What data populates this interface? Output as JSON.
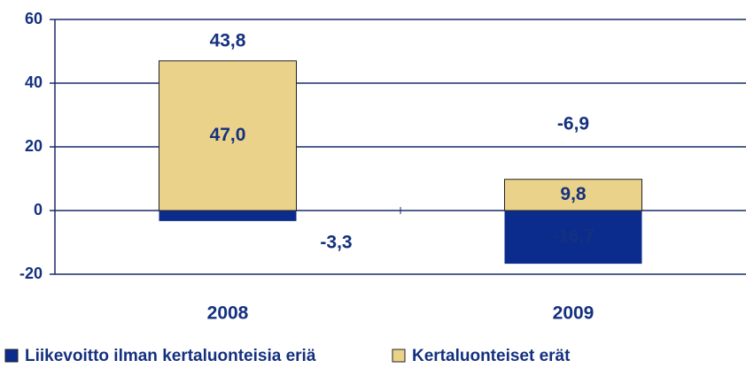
{
  "chart_data": {
    "type": "bar",
    "stacked": true,
    "categories": [
      "2008",
      "2009"
    ],
    "series": [
      {
        "name": "Liikevoitto ilman kertaluonteisia eriä",
        "color": "#0b2c8c",
        "values": [
          -3.3,
          -16.7
        ],
        "value_labels": [
          "-3,3",
          "-16,7"
        ]
      },
      {
        "name": "Kertaluonteiset erät",
        "color": "#ebd28a",
        "values": [
          47.0,
          9.8
        ],
        "value_labels": [
          "47,0",
          "9,8"
        ]
      }
    ],
    "totals": [
      43.8,
      -6.9
    ],
    "total_labels": [
      "43,8",
      "-6,9"
    ],
    "ylim": [
      -20,
      60
    ],
    "yticks": [
      -20,
      0,
      20,
      40,
      60
    ],
    "grid": true,
    "legend": "bottom"
  }
}
